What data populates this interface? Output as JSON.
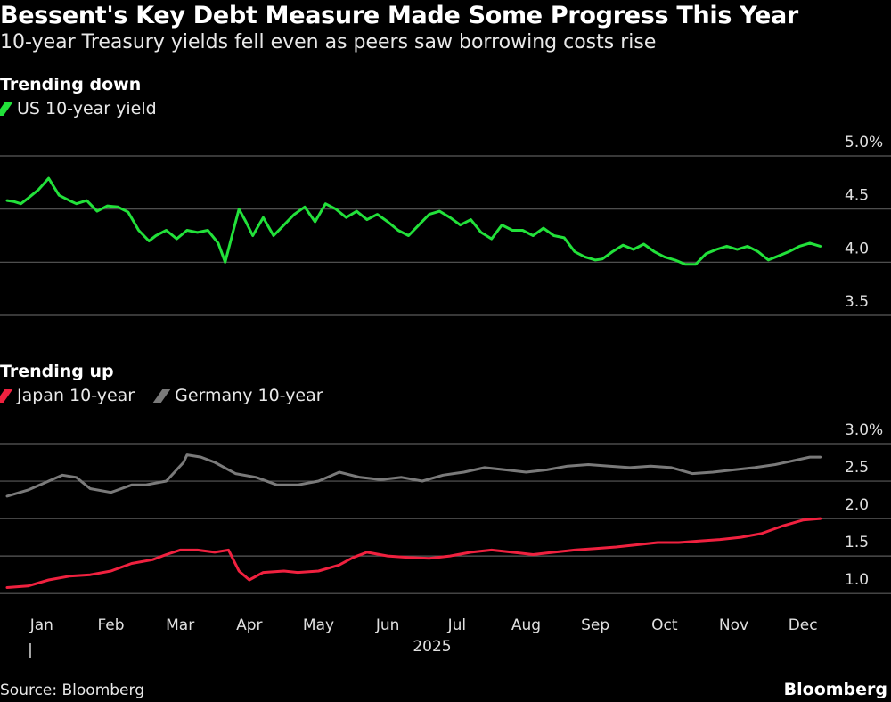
{
  "title": "Bessent's Key Debt Measure Made Some Progress This Year",
  "subtitle": "10-year Treasury yields fell even as peers saw borrowing costs rise",
  "source": "Source: Bloomberg",
  "brand": "Bloomberg",
  "colors": {
    "green": "#22e13a",
    "red": "#f0213f",
    "gray": "#7a7a7a",
    "grid": "#5a5a5a"
  },
  "x_axis": {
    "months": [
      "Jan",
      "Feb",
      "Mar",
      "Apr",
      "May",
      "Jun",
      "Jul",
      "Aug",
      "Sep",
      "Oct",
      "Nov",
      "Dec"
    ],
    "year": "2025",
    "year_tick": "|"
  },
  "chart_data": [
    {
      "type": "line",
      "title": "Trending down",
      "x_unit": "month index (0 = Jan 1, 12 = Dec 31)",
      "ylim": [
        3.5,
        5.0
      ],
      "yticks": [
        3.5,
        4.0,
        4.5,
        5.0
      ],
      "ytick_labels": [
        "3.5",
        "4.0",
        "4.5",
        "5.0%"
      ],
      "series": [
        {
          "name": "US 10-year yield",
          "color": "#22e13a",
          "x": [
            0.0,
            0.1,
            0.2,
            0.3,
            0.45,
            0.6,
            0.75,
            0.9,
            1.0,
            1.15,
            1.3,
            1.45,
            1.6,
            1.75,
            1.9,
            2.05,
            2.15,
            2.3,
            2.45,
            2.6,
            2.75,
            2.9,
            3.05,
            3.15,
            3.25,
            3.35,
            3.45,
            3.55,
            3.7,
            3.85,
            4.0,
            4.15,
            4.3,
            4.45,
            4.6,
            4.75,
            4.9,
            5.05,
            5.2,
            5.35,
            5.5,
            5.65,
            5.8,
            5.95,
            6.1,
            6.25,
            6.4,
            6.55,
            6.7,
            6.85,
            7.0,
            7.15,
            7.3,
            7.45,
            7.6,
            7.75,
            7.9,
            8.05,
            8.2,
            8.35,
            8.5,
            8.6,
            8.75,
            8.9,
            9.05,
            9.2,
            9.35,
            9.5,
            9.65,
            9.8,
            9.95,
            10.1,
            10.25,
            10.4,
            10.55,
            10.7,
            10.85,
            11.0,
            11.15,
            11.3,
            11.45,
            11.6,
            11.75
          ],
          "values": [
            4.58,
            4.57,
            4.55,
            4.6,
            4.68,
            4.79,
            4.63,
            4.58,
            4.55,
            4.58,
            4.48,
            4.53,
            4.52,
            4.47,
            4.3,
            4.2,
            4.25,
            4.3,
            4.22,
            4.3,
            4.28,
            4.3,
            4.18,
            4.0,
            4.25,
            4.5,
            4.38,
            4.25,
            4.42,
            4.25,
            4.35,
            4.45,
            4.52,
            4.38,
            4.55,
            4.5,
            4.42,
            4.48,
            4.4,
            4.45,
            4.38,
            4.3,
            4.25,
            4.35,
            4.45,
            4.48,
            4.42,
            4.35,
            4.4,
            4.28,
            4.22,
            4.35,
            4.3,
            4.3,
            4.25,
            4.32,
            4.25,
            4.23,
            4.1,
            4.05,
            4.02,
            4.03,
            4.1,
            4.16,
            4.12,
            4.17,
            4.1,
            4.05,
            4.02,
            3.98,
            3.98,
            4.08,
            4.12,
            4.15,
            4.12,
            4.15,
            4.1,
            4.02,
            4.06,
            4.1,
            4.15,
            4.18,
            4.15
          ]
        }
      ]
    },
    {
      "type": "line",
      "title": "Trending up",
      "x_unit": "month index (0 = Jan 1, 12 = Dec 31)",
      "ylim": [
        0.8,
        3.0
      ],
      "yticks": [
        1.0,
        1.5,
        2.0,
        2.5,
        3.0
      ],
      "ytick_labels": [
        "1.0",
        "1.5",
        "2.0",
        "2.5",
        "3.0%"
      ],
      "series": [
        {
          "name": "Japan 10-year",
          "color": "#f0213f",
          "x": [
            0.0,
            0.3,
            0.6,
            0.9,
            1.2,
            1.5,
            1.8,
            2.1,
            2.3,
            2.5,
            2.75,
            3.0,
            3.2,
            3.35,
            3.5,
            3.7,
            4.0,
            4.2,
            4.5,
            4.8,
            5.0,
            5.2,
            5.5,
            5.8,
            6.1,
            6.4,
            6.7,
            7.0,
            7.3,
            7.6,
            7.9,
            8.2,
            8.5,
            8.8,
            9.1,
            9.4,
            9.7,
            10.0,
            10.3,
            10.6,
            10.9,
            11.2,
            11.5,
            11.75
          ],
          "values": [
            1.08,
            1.1,
            1.18,
            1.23,
            1.25,
            1.3,
            1.4,
            1.45,
            1.52,
            1.58,
            1.58,
            1.55,
            1.58,
            1.3,
            1.18,
            1.28,
            1.3,
            1.28,
            1.3,
            1.38,
            1.48,
            1.55,
            1.5,
            1.48,
            1.47,
            1.5,
            1.55,
            1.58,
            1.55,
            1.52,
            1.55,
            1.58,
            1.6,
            1.62,
            1.65,
            1.68,
            1.68,
            1.7,
            1.72,
            1.75,
            1.8,
            1.9,
            1.98,
            2.0
          ]
        },
        {
          "name": "Germany 10-year",
          "color": "#7a7a7a",
          "x": [
            0.0,
            0.3,
            0.6,
            0.8,
            1.0,
            1.2,
            1.5,
            1.8,
            2.0,
            2.3,
            2.55,
            2.6,
            2.8,
            3.0,
            3.3,
            3.6,
            3.9,
            4.2,
            4.5,
            4.8,
            5.1,
            5.4,
            5.7,
            6.0,
            6.3,
            6.6,
            6.9,
            7.2,
            7.5,
            7.8,
            8.1,
            8.4,
            8.7,
            9.0,
            9.3,
            9.6,
            9.9,
            10.2,
            10.5,
            10.8,
            11.1,
            11.4,
            11.6,
            11.75
          ],
          "values": [
            2.3,
            2.38,
            2.5,
            2.58,
            2.55,
            2.4,
            2.35,
            2.45,
            2.45,
            2.5,
            2.75,
            2.85,
            2.82,
            2.75,
            2.6,
            2.55,
            2.45,
            2.45,
            2.5,
            2.62,
            2.55,
            2.52,
            2.55,
            2.5,
            2.58,
            2.62,
            2.68,
            2.65,
            2.62,
            2.65,
            2.7,
            2.72,
            2.7,
            2.68,
            2.7,
            2.68,
            2.6,
            2.62,
            2.65,
            2.68,
            2.72,
            2.78,
            2.82,
            2.82
          ]
        }
      ]
    }
  ]
}
